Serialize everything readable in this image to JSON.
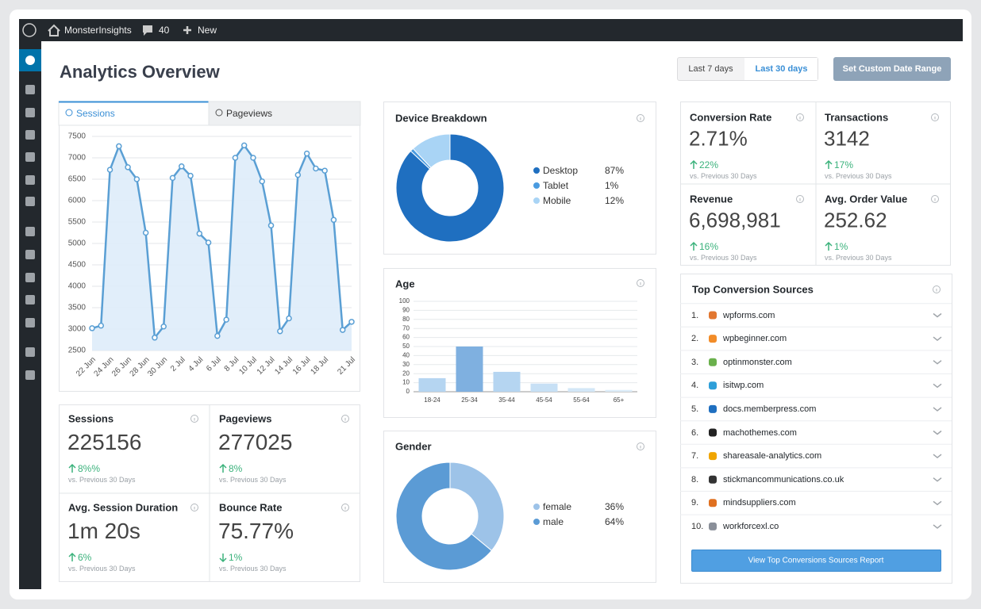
{
  "admin_bar": {
    "site": "MonsterInsights",
    "comments": "40",
    "new": "New"
  },
  "header": {
    "title": "Analytics Overview",
    "ranges": [
      "Last 7 days",
      "Last 30 days"
    ],
    "active_range": 1,
    "custom_range": "Set Custom Date Range"
  },
  "sessions_chart": {
    "type": "line",
    "tabs": [
      "Sessions",
      "Pageviews"
    ],
    "active_tab": 0,
    "color": "#5a9fd4",
    "grid": true,
    "categories": [
      "22 Jun",
      null,
      "24 Jun",
      null,
      "26 Jun",
      null,
      "28 Jun",
      null,
      "30 Jun",
      null,
      "2 Jul",
      null,
      "4 Jul",
      null,
      "6 Jul",
      null,
      "8 Jul",
      null,
      "10 Jul",
      null,
      "12 Jul",
      null,
      "14 Jul",
      null,
      "16 Jul",
      null,
      "18 Jul",
      null,
      null,
      "21 Jul"
    ],
    "values": [
      3020,
      3080,
      6720,
      7270,
      6780,
      6500,
      5250,
      2800,
      3060,
      6530,
      6800,
      6580,
      5230,
      5020,
      2840,
      3220,
      7000,
      7290,
      7000,
      6450,
      5420,
      2950,
      3250,
      6600,
      7100,
      6750,
      6700,
      5550,
      2980,
      3170
    ],
    "ylim": [
      2500,
      7500
    ],
    "yticks": [
      2500,
      3000,
      3500,
      4000,
      4500,
      5000,
      5500,
      6000,
      6500,
      7000,
      7500
    ]
  },
  "site_stats": [
    {
      "label": "Sessions",
      "value": "225156",
      "change": "8%%",
      "direction": "up",
      "note": "vs. Previous 30 Days"
    },
    {
      "label": "Pageviews",
      "value": "277025",
      "change": "8%",
      "direction": "up",
      "note": "vs. Previous 30 Days"
    },
    {
      "label": "Avg. Session Duration",
      "value": "1m 20s",
      "change": "6%",
      "direction": "up",
      "note": "vs. Previous 30 Days"
    },
    {
      "label": "Bounce Rate",
      "value": "75.77%",
      "change": "1%",
      "direction": "down",
      "note": "vs. Previous 30 Days"
    }
  ],
  "device_breakdown": {
    "type": "pie",
    "title": "Device Breakdown",
    "categories": [
      "Desktop",
      "Tablet",
      "Mobile"
    ],
    "values": [
      87,
      1,
      12
    ],
    "value_labels": [
      "87%",
      "1%",
      "12%"
    ],
    "colors": [
      "#1f6fc0",
      "#4a9be0",
      "#a9d4f5"
    ]
  },
  "age": {
    "type": "bar",
    "title": "Age",
    "categories": [
      "18-24",
      "25-34",
      "35-44",
      "45-54",
      "55-64",
      "65+"
    ],
    "values": [
      15,
      50,
      22,
      9,
      4,
      2
    ],
    "colors": [
      "#b5d5f1",
      "#7fb0e0",
      "#b5d5f1",
      "#c7e0f5",
      "#d3e7f7",
      "#dcecf9"
    ],
    "ylim": [
      0,
      100
    ],
    "yticks": [
      0,
      10,
      20,
      30,
      40,
      50,
      60,
      70,
      80,
      90,
      100
    ],
    "grid": true
  },
  "gender": {
    "type": "pie",
    "title": "Gender",
    "categories": [
      "female",
      "male"
    ],
    "values": [
      36,
      64
    ],
    "value_labels": [
      "36%",
      "64%"
    ],
    "colors": [
      "#9dc3e8",
      "#5b9bd5"
    ]
  },
  "conversion_stats": [
    {
      "label": "Conversion Rate",
      "value": "2.71%",
      "change": "22%",
      "direction": "up",
      "note": "vs. Previous 30 Days"
    },
    {
      "label": "Transactions",
      "value": "3142",
      "change": "17%",
      "direction": "up",
      "note": "vs. Previous 30 Days"
    },
    {
      "label": "Revenue",
      "value": "6,698,981",
      "change": "16%",
      "direction": "up",
      "note": "vs. Previous 30 Days"
    },
    {
      "label": "Avg. Order Value",
      "value": "252.62",
      "change": "1%",
      "direction": "up",
      "note": "vs. Previous 30 Days"
    }
  ],
  "top_sources": {
    "title": "Top Conversion Sources",
    "button": "View Top Conversions Sources Report",
    "items": [
      {
        "rank": "1.",
        "name": "wpforms.com"
      },
      {
        "rank": "2.",
        "name": "wpbeginner.com"
      },
      {
        "rank": "3.",
        "name": "optinmonster.com"
      },
      {
        "rank": "4.",
        "name": "isitwp.com"
      },
      {
        "rank": "5.",
        "name": "docs.memberpress.com"
      },
      {
        "rank": "6.",
        "name": "machothemes.com"
      },
      {
        "rank": "7.",
        "name": "shareasale-analytics.com"
      },
      {
        "rank": "8.",
        "name": "stickmancommunications.co.uk"
      },
      {
        "rank": "9.",
        "name": "mindsuppliers.com"
      },
      {
        "rank": "10.",
        "name": "workforcexl.co"
      }
    ]
  }
}
